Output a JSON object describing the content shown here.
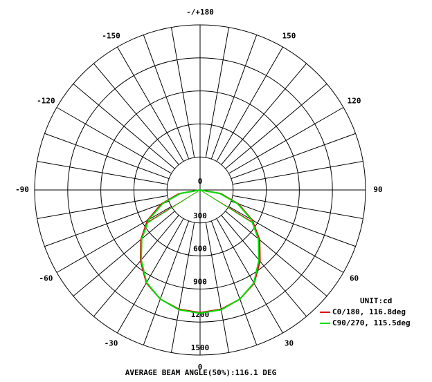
{
  "chart_data": {
    "type": "polar",
    "x": [
      -90,
      -80,
      -70,
      -60,
      -50,
      -40,
      -30,
      -20,
      -10,
      0,
      10,
      20,
      30,
      40,
      50,
      60,
      70,
      80,
      90
    ],
    "series": [
      {
        "name": "C0/180, 116.8deg",
        "color": "#e00000",
        "beam_angle": 116.8,
        "values": [
          0,
          195,
          375,
          550,
          700,
          840,
          975,
          1055,
          1100,
          1115,
          1100,
          1055,
          980,
          845,
          705,
          545,
          370,
          190,
          0
        ]
      },
      {
        "name": "C90/270, 115.5deg",
        "color": "#00e000",
        "beam_angle": 115.5,
        "values": [
          0,
          180,
          360,
          535,
          690,
          830,
          970,
          1055,
          1105,
          1120,
          1105,
          1055,
          975,
          830,
          690,
          535,
          360,
          180,
          0
        ]
      }
    ],
    "rlim": [
      0,
      1500
    ],
    "rticks": [
      0,
      300,
      600,
      900,
      1200,
      1500
    ],
    "angle_ticks": [
      {
        "value": 180,
        "label": "-/+180"
      },
      150,
      120,
      90,
      60,
      30,
      0,
      -30,
      -60,
      -90,
      -120,
      -150
    ],
    "unit_label": "UNIT:cd",
    "footer": "AVERAGE BEAM ANGLE(50%):116.1 DEG"
  }
}
